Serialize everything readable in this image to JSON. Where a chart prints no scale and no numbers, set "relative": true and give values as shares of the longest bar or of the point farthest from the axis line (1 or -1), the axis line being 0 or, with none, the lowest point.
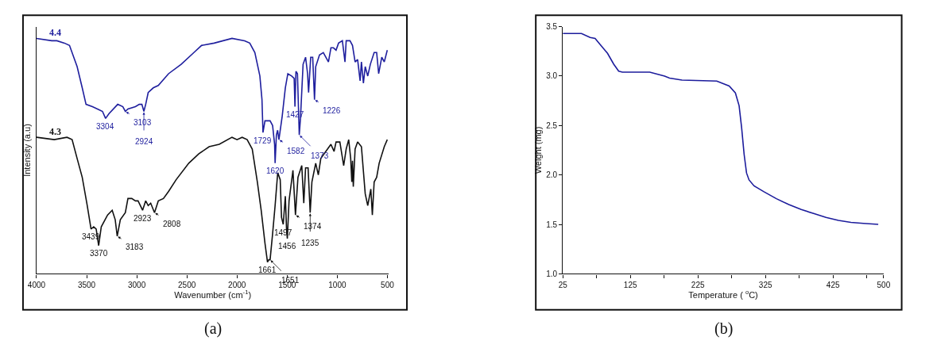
{
  "chart_data": [
    {
      "type": "line",
      "relative": true,
      "xlabel": "Wavenumber (cm$^{-1}$)",
      "ylabel": "Intensity (a.u)",
      "tick_labels": "x",
      "xlim": [
        4000,
        485
      ],
      "xticks": [
        4000,
        3500,
        3000,
        2500,
        2000,
        1500,
        1000,
        500
      ],
      "series": [
        {
          "name": "4.4",
          "color": "#1f1f9e",
          "x": [
            4000,
            3848,
            3797,
            3721,
            3671,
            3595,
            3544,
            3506,
            3443,
            3392,
            3342,
            3311,
            3278,
            3190,
            3139,
            3114,
            3088,
            3013,
            2975,
            2949,
            2929,
            2911,
            2886,
            2835,
            2785,
            2683,
            2557,
            2430,
            2354,
            2228,
            2050,
            1924,
            1873,
            1822,
            1772,
            1751,
            1741,
            1721,
            1670,
            1645,
            1625,
            1620,
            1607,
            1595,
            1582,
            1549,
            1518,
            1493,
            1455,
            1430,
            1422,
            1412,
            1397,
            1379,
            1367,
            1341,
            1316,
            1296,
            1286,
            1265,
            1245,
            1227,
            1215,
            1177,
            1139,
            1088,
            1063,
            1038,
            1012,
            987,
            949,
            923,
            911,
            873,
            848,
            822,
            797,
            772,
            759,
            739,
            721,
            696,
            670,
            632,
            607,
            587,
            556,
            531,
            501
          ],
          "values": [
            1.0,
            0.99,
            0.99,
            0.98,
            0.97,
            0.88,
            0.79,
            0.72,
            0.71,
            0.7,
            0.69,
            0.66,
            0.68,
            0.72,
            0.71,
            0.69,
            0.7,
            0.71,
            0.72,
            0.72,
            0.69,
            0.72,
            0.77,
            0.79,
            0.8,
            0.85,
            0.89,
            0.94,
            0.97,
            0.98,
            1.0,
            0.99,
            0.98,
            0.94,
            0.84,
            0.74,
            0.6,
            0.65,
            0.65,
            0.63,
            0.55,
            0.47,
            0.59,
            0.61,
            0.57,
            0.67,
            0.79,
            0.85,
            0.84,
            0.83,
            0.71,
            0.86,
            0.85,
            0.59,
            0.66,
            0.89,
            0.92,
            0.85,
            0.77,
            0.92,
            0.92,
            0.74,
            0.88,
            0.93,
            0.94,
            0.9,
            0.96,
            0.96,
            0.95,
            0.98,
            0.99,
            0.9,
            0.99,
            0.99,
            0.97,
            0.9,
            0.91,
            0.82,
            0.9,
            0.81,
            0.88,
            0.84,
            0.89,
            0.94,
            0.94,
            0.85,
            0.92,
            0.9,
            0.95
          ]
        },
        {
          "name": "4.3",
          "color": "#111111",
          "x": [
            4000,
            3823,
            3696,
            3645,
            3595,
            3544,
            3494,
            3456,
            3430,
            3405,
            3380,
            3354,
            3291,
            3245,
            3215,
            3195,
            3164,
            3114,
            3088,
            3050,
            3013,
            2987,
            2942,
            2911,
            2886,
            2861,
            2823,
            2785,
            2734,
            2683,
            2607,
            2481,
            2380,
            2278,
            2177,
            2050,
            2000,
            1949,
            1899,
            1848,
            1797,
            1759,
            1721,
            1696,
            1683,
            1670,
            1645,
            1620,
            1594,
            1569,
            1556,
            1539,
            1518,
            1506,
            1498,
            1481,
            1442,
            1417,
            1392,
            1354,
            1334,
            1316,
            1291,
            1270,
            1253,
            1215,
            1189,
            1164,
            1063,
            1032,
            1012,
            974,
            936,
            911,
            886,
            866,
            855,
            848,
            840,
            822,
            797,
            759,
            721,
            696,
            665,
            650,
            632,
            607,
            582,
            531,
            501
          ],
          "values": [
            0.58,
            0.57,
            0.58,
            0.57,
            0.49,
            0.41,
            0.29,
            0.19,
            0.2,
            0.19,
            0.12,
            0.2,
            0.25,
            0.27,
            0.23,
            0.16,
            0.23,
            0.26,
            0.32,
            0.32,
            0.31,
            0.31,
            0.27,
            0.31,
            0.29,
            0.3,
            0.26,
            0.31,
            0.32,
            0.35,
            0.4,
            0.47,
            0.51,
            0.54,
            0.55,
            0.58,
            0.57,
            0.58,
            0.57,
            0.53,
            0.39,
            0.27,
            0.13,
            0.05,
            0.06,
            0.06,
            0.17,
            0.29,
            0.43,
            0.4,
            0.24,
            0.21,
            0.33,
            0.19,
            0.15,
            0.31,
            0.44,
            0.25,
            0.41,
            0.46,
            0.3,
            0.45,
            0.45,
            0.26,
            0.39,
            0.47,
            0.42,
            0.49,
            0.55,
            0.52,
            0.56,
            0.56,
            0.46,
            0.53,
            0.57,
            0.49,
            0.39,
            0.48,
            0.37,
            0.53,
            0.56,
            0.54,
            0.34,
            0.29,
            0.36,
            0.25,
            0.39,
            0.41,
            0.47,
            0.54,
            0.57
          ]
        }
      ],
      "annotations": [
        {
          "text": "3304",
          "x": 3311,
          "y": 0.66
        },
        {
          "text": "3103",
          "x": 3114,
          "y": 0.69
        },
        {
          "text": "2924",
          "x": 2929,
          "y": 0.69
        },
        {
          "text": "1729",
          "x": 1741,
          "y": 0.6
        },
        {
          "text": "1620",
          "x": 1620,
          "y": 0.47
        },
        {
          "text": "1582",
          "x": 1582,
          "y": 0.57
        },
        {
          "text": "1427",
          "x": 1422,
          "y": 0.71
        },
        {
          "text": "1373",
          "x": 1379,
          "y": 0.59
        },
        {
          "text": "1226",
          "x": 1227,
          "y": 0.74
        },
        {
          "text": "3439",
          "x": 3456,
          "y": 0.19
        },
        {
          "text": "3370",
          "x": 3380,
          "y": 0.12
        },
        {
          "text": "3183",
          "x": 3195,
          "y": 0.16
        },
        {
          "text": "2923",
          "x": 2942,
          "y": 0.27
        },
        {
          "text": "2808",
          "x": 2823,
          "y": 0.26
        },
        {
          "text": "1661",
          "x": 1696,
          "y": 0.05
        },
        {
          "text": "1651",
          "x": 1670,
          "y": 0.06
        },
        {
          "text": "1497",
          "x": 1539,
          "y": 0.21
        },
        {
          "text": "1456",
          "x": 1498,
          "y": 0.15
        },
        {
          "text": "1374",
          "x": 1417,
          "y": 0.25
        },
        {
          "text": "1235",
          "x": 1270,
          "y": 0.26
        },
        "(a)"
      ]
    },
    {
      "type": "line",
      "xlabel": "Temperature ( $^{o}$C)",
      "ylabel": "Weight (mg)",
      "xlim": [
        25,
        500
      ],
      "xticks": [
        25,
        {
          "value": 75,
          "label": null
        },
        125,
        {
          "value": 175,
          "label": null
        },
        225,
        {
          "value": 275,
          "label": null
        },
        325,
        {
          "value": 375,
          "label": null
        },
        425,
        {
          "value": 475,
          "label": null
        },
        500
      ],
      "ylim": [
        1.0,
        3.5
      ],
      "yticks": [
        {
          "value": 1,
          "label": "1.0"
        },
        1.5,
        {
          "value": 2,
          "label": "2.0"
        },
        2.5,
        {
          "value": 3,
          "label": "3.0"
        },
        3.5
      ],
      "series": [
        {
          "color": "#1c1c9c",
          "x": [
            25,
            52.6,
            65.4,
            72.8,
            80.1,
            91.2,
            100.4,
            107.7,
            113.2,
            153.7,
            175.7,
            183,
            201.4,
            252.9,
            271.3,
            280.5,
            286,
            289.7,
            293.4,
            297,
            300.7,
            308.1,
            322.8,
            341.2,
            359.6,
            378,
            396.3,
            414.7,
            433.1,
            451.5,
            469.9,
            492
          ],
          "values": [
            3.43,
            3.43,
            3.39,
            3.38,
            3.32,
            3.23,
            3.12,
            3.05,
            3.04,
            3.04,
            3.0,
            2.98,
            2.96,
            2.95,
            2.9,
            2.83,
            2.7,
            2.48,
            2.21,
            2.02,
            1.95,
            1.89,
            1.83,
            1.76,
            1.7,
            1.65,
            1.61,
            1.57,
            1.54,
            1.52,
            1.51,
            1.5
          ]
        }
      ],
      "annotations": [
        "(b)"
      ]
    }
  ]
}
